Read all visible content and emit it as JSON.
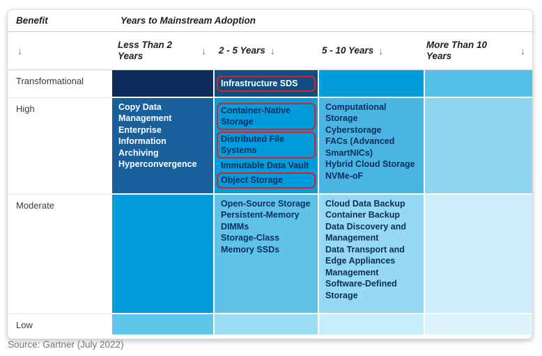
{
  "chart_data": {
    "type": "heatmap",
    "title": "Years to Mainstream Adoption",
    "row_axis_label": "Benefit",
    "sort_arrow": "↓",
    "columns": [
      "Less Than 2 Years",
      "2 - 5 Years",
      "5 - 10 Years",
      "More Than 10 Years"
    ],
    "row_labels": [
      "Transformational",
      "High",
      "Moderate",
      "Low"
    ],
    "highlight_border_color": "#e0201f",
    "highlighted_items": [
      "Infrastructure SDS",
      "Container-Native Storage",
      "Distributed File Systems",
      "Object Storage"
    ],
    "rows": [
      {
        "label": "Transformational",
        "cells": [
          {
            "bg": "#0c2c5c",
            "items": []
          },
          {
            "bg": "#0f4d85",
            "items": [
              {
                "text": "Infrastructure SDS",
                "highlighted": true
              }
            ]
          },
          {
            "bg": "#009cdb",
            "items": []
          },
          {
            "bg": "#54c0e8",
            "items": []
          }
        ]
      },
      {
        "label": "High",
        "cells": [
          {
            "bg": "#17609c",
            "items": [
              {
                "text": "Copy Data Management"
              },
              {
                "text": "Enterprise Information Archiving"
              },
              {
                "text": "Hyperconvergence"
              }
            ]
          },
          {
            "bg": "#009cdb",
            "items": [
              {
                "text": "Container-Native Storage",
                "highlighted": true
              },
              {
                "text": "Distributed File Systems",
                "highlighted": true
              },
              {
                "text": "Immutable Data Vault"
              },
              {
                "text": "Object Storage",
                "highlighted": true
              }
            ]
          },
          {
            "bg": "#4ab4e2",
            "items": [
              {
                "text": "Computational Storage"
              },
              {
                "text": "Cyberstorage"
              },
              {
                "text": "FACs (Advanced SmartNICs)"
              },
              {
                "text": "Hybrid Cloud Storage"
              },
              {
                "text": "NVMe-oF"
              }
            ]
          },
          {
            "bg": "#8fd5f0",
            "items": []
          }
        ]
      },
      {
        "label": "Moderate",
        "cells": [
          {
            "bg": "#009cdb",
            "items": []
          },
          {
            "bg": "#5fc3e9",
            "items": [
              {
                "text": "Open-Source Storage"
              },
              {
                "text": "Persistent-Memory DIMMs"
              },
              {
                "text": "Storage-Class Memory SSDs"
              }
            ]
          },
          {
            "bg": "#96d9f2",
            "items": [
              {
                "text": "Cloud Data Backup"
              },
              {
                "text": "Container Backup"
              },
              {
                "text": "Data Discovery and Management"
              },
              {
                "text": "Data Transport and Edge Appliances Management"
              },
              {
                "text": "Software-Defined Storage"
              }
            ]
          },
          {
            "bg": "#cdeefb",
            "items": []
          }
        ]
      },
      {
        "label": "Low",
        "cells": [
          {
            "bg": "#5ec6ea",
            "items": []
          },
          {
            "bg": "#99dcf4",
            "items": []
          },
          {
            "bg": "#c9ecf9",
            "items": []
          },
          {
            "bg": "#def4fc",
            "items": []
          }
        ]
      }
    ],
    "source": "Source: Gartner (July 2022)"
  }
}
